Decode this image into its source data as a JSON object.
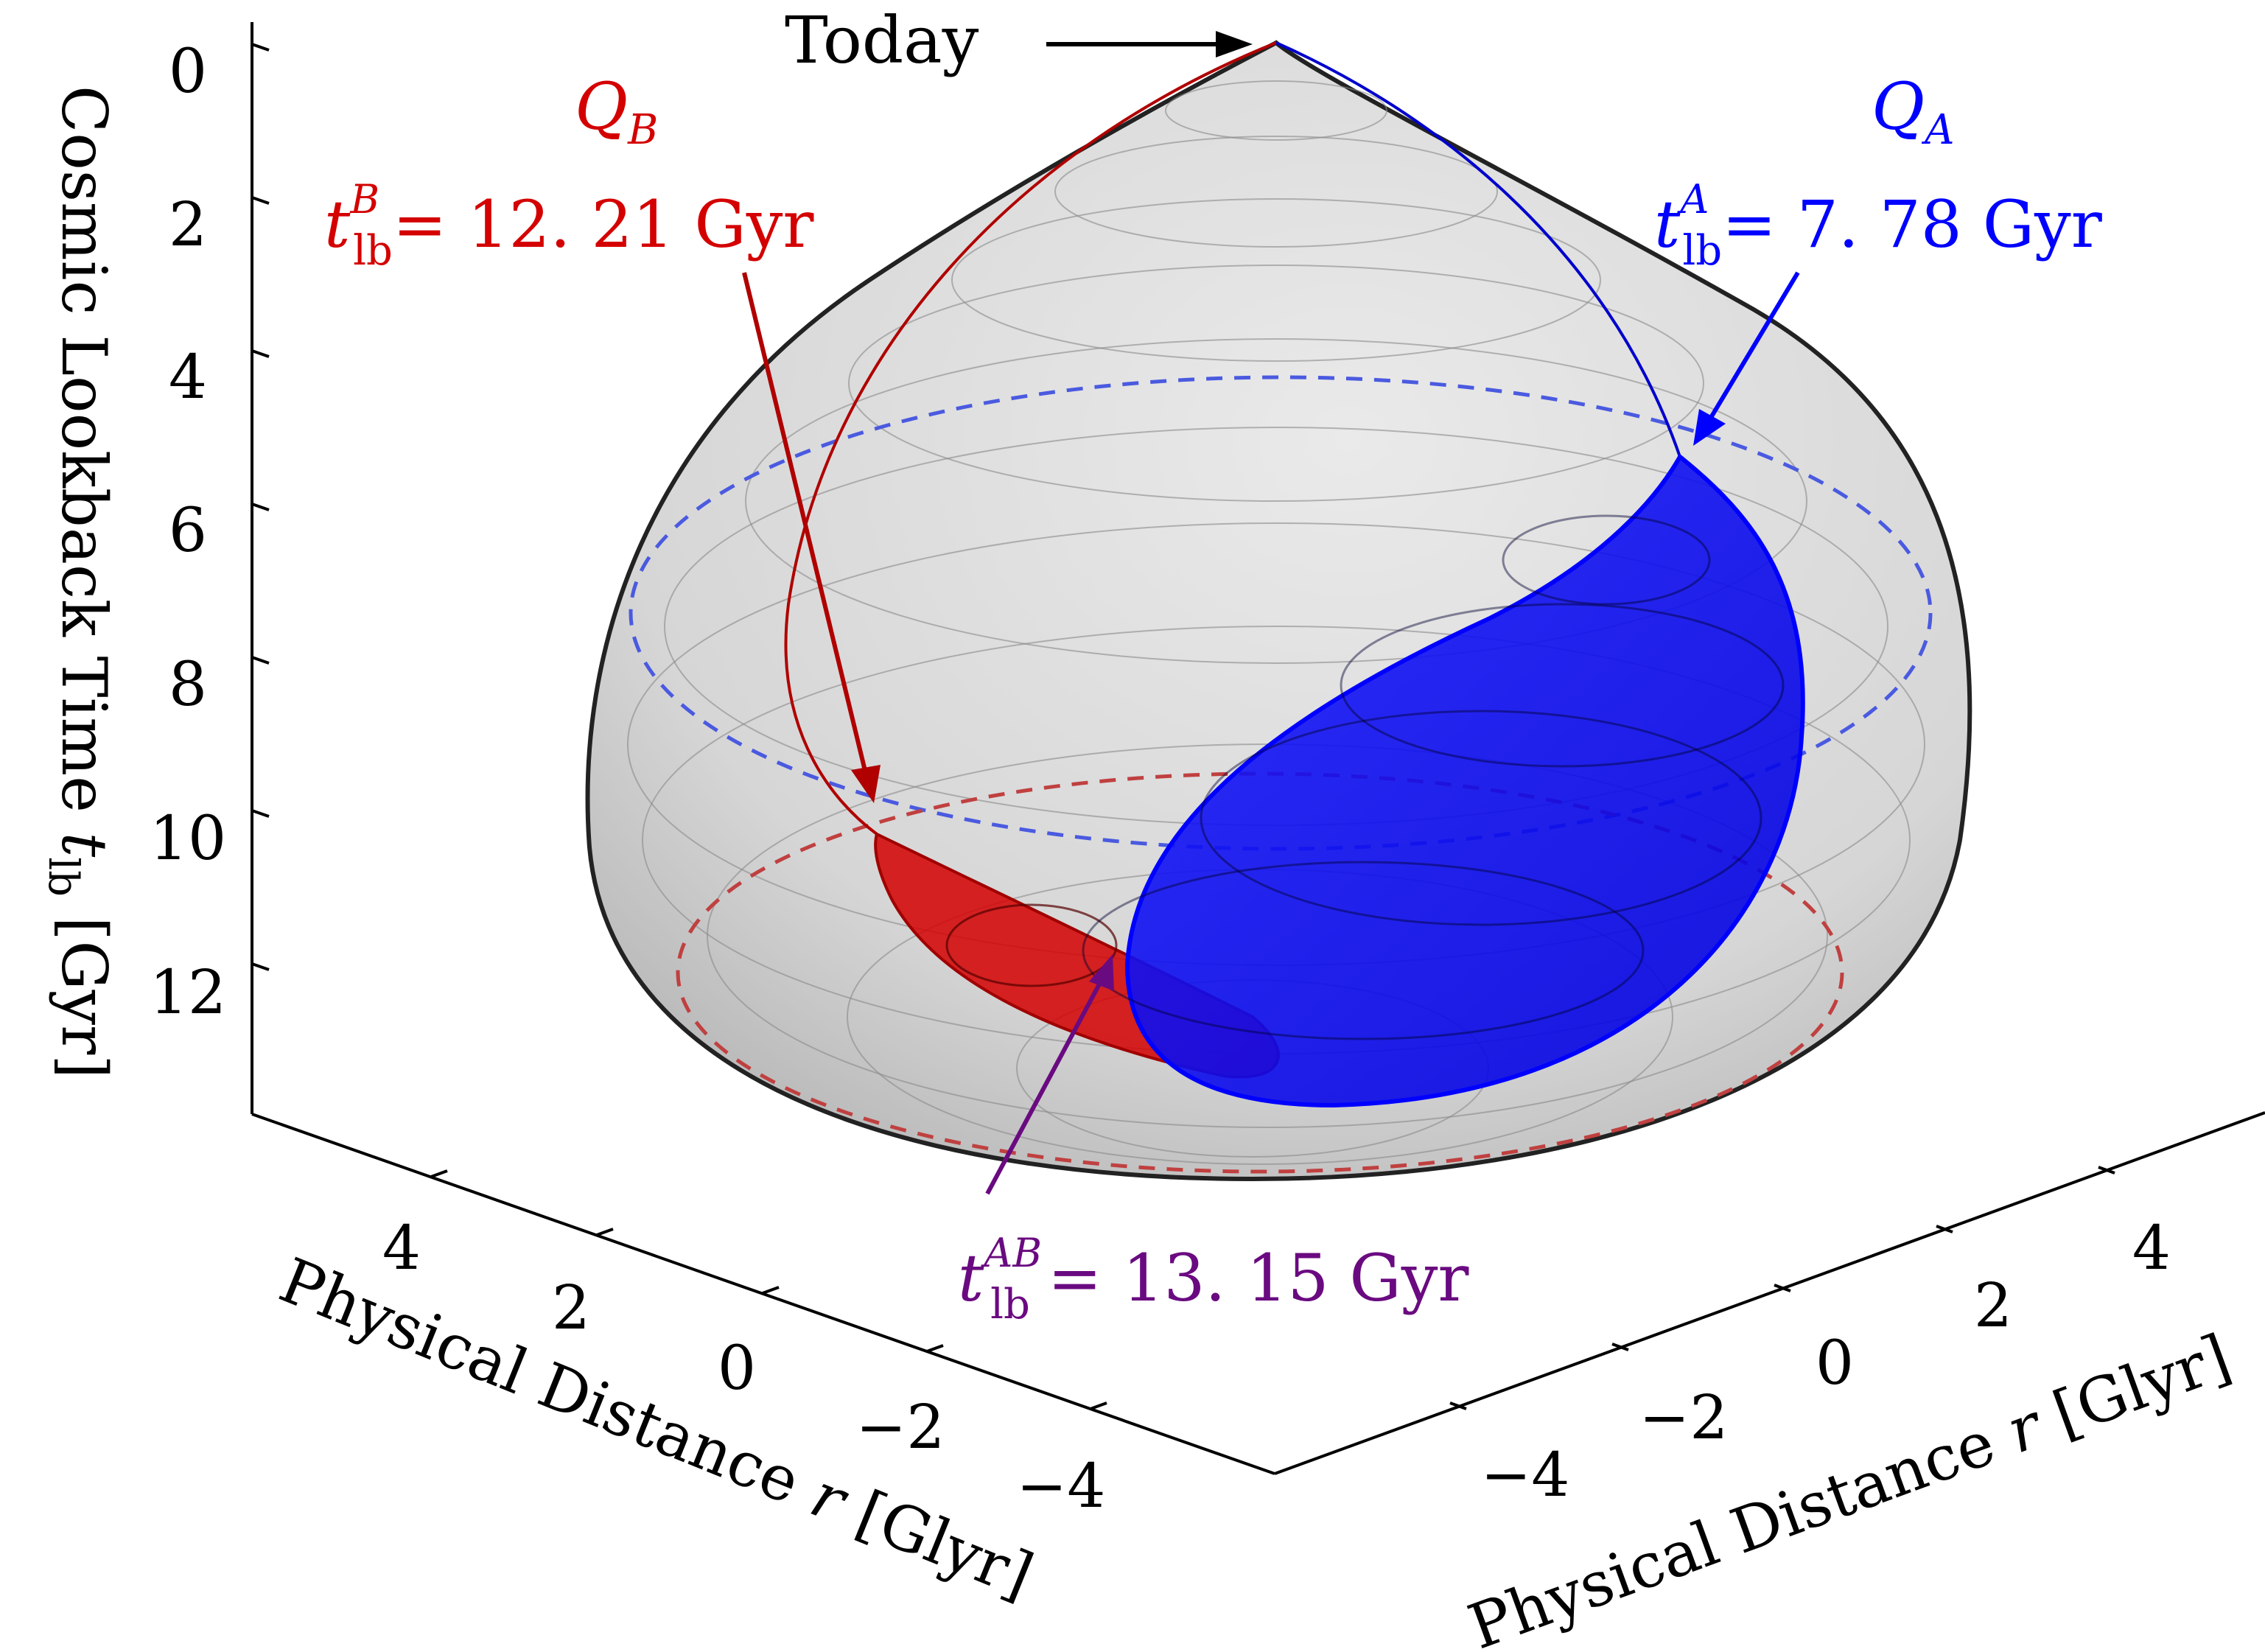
{
  "chart_data": {
    "type": "3d-surface",
    "title": "",
    "zlabel": "Cosmic Lookback Time t_lb [Gyr]",
    "zlabel_parts": {
      "main": "Cosmic Lookback Time",
      "var": "t",
      "sub": "lb",
      "unit": "[Gyr]"
    },
    "z_ticks": [
      "0",
      "2",
      "4",
      "6",
      "8",
      "10",
      "12"
    ],
    "zlim": [
      0,
      14
    ],
    "xlabel": "Physical Distance r [Glyr]",
    "xlabel_parts": {
      "pre": "Physical Distance",
      "var": "r",
      "unit": "[Glyr]"
    },
    "x_ticks": [
      "4",
      "2",
      "0",
      "−2",
      "−4"
    ],
    "ylabel": "Physical Distance r [Glyr]",
    "ylabel_parts": {
      "pre": "Physical Distance",
      "var": "r",
      "unit": "[Glyr]"
    },
    "y_ticks": [
      "−4",
      "−2",
      "0",
      "2",
      "4"
    ],
    "surfaces": [
      {
        "name": "Past light cone (Today)",
        "color": "#9a9a9a"
      },
      {
        "name": "Q_A light cone",
        "color": "#0000ff",
        "apex_tlb": 7.78
      },
      {
        "name": "Q_B light cone",
        "color": "#d40000",
        "apex_tlb": 12.21
      }
    ],
    "dashed_rings": [
      {
        "series": "Q_A",
        "tlb": 7.78,
        "color": "#4a5ae0"
      },
      {
        "series": "Q_B",
        "tlb": 12.21,
        "color": "#c04040"
      }
    ],
    "annotations": {
      "today": "Today",
      "qb": {
        "label": "Q",
        "label_sub": "B",
        "var": "t",
        "sub": "lb",
        "sup": "B",
        "eq": "= 12. 21 Gyr",
        "tlb": 12.21
      },
      "qa": {
        "label": "Q",
        "label_sub": "A",
        "var": "t",
        "sub": "lb",
        "sup": "A",
        "eq": "= 7. 78 Gyr",
        "tlb": 7.78
      },
      "qab": {
        "var": "t",
        "sub": "lb",
        "sup": "AB",
        "eq": "= 13. 15 Gyr",
        "tlb": 13.15
      }
    }
  },
  "colors": {
    "red": "#d40000",
    "blue": "#0000ff",
    "purple": "#6a0a80",
    "black": "#000000"
  }
}
